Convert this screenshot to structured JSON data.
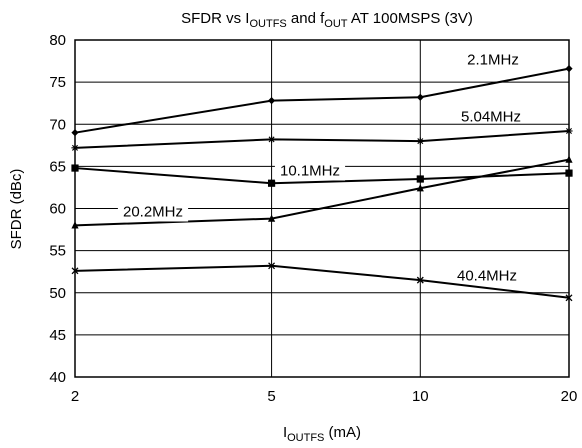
{
  "chart_data": {
    "type": "line",
    "title": {
      "prefix": "SFDR vs I",
      "sub1": "OUTFS",
      "middle": " and f",
      "sub2": "OUT",
      "suffix": " AT 100MSPS (3V)"
    },
    "xlabel": {
      "main": "I",
      "sub": "OUTFS",
      "unit": " (mA)"
    },
    "ylabel": "SFDR (dBc)",
    "x_scale": "log",
    "x_ticks": [
      2,
      5,
      10,
      20
    ],
    "x_tick_labels": [
      "2",
      "5",
      "10",
      "20"
    ],
    "ylim": [
      40,
      80
    ],
    "y_ticks": [
      40,
      45,
      50,
      55,
      60,
      65,
      70,
      75,
      80
    ],
    "y_tick_labels": [
      "40",
      "45",
      "50",
      "55",
      "60",
      "65",
      "70",
      "75",
      "80"
    ],
    "grid": true,
    "legend": "inline labels",
    "series": [
      {
        "name": "2.1MHz",
        "marker": "diamond",
        "x": [
          2,
          5,
          10,
          20
        ],
        "y": [
          69.0,
          72.8,
          73.2,
          76.6
        ]
      },
      {
        "name": "5.04MHz",
        "marker": "star",
        "x": [
          2,
          5,
          10,
          20
        ],
        "y": [
          67.2,
          68.2,
          68.0,
          69.2
        ]
      },
      {
        "name": "10.1MHz",
        "marker": "square",
        "x": [
          2,
          5,
          10,
          20
        ],
        "y": [
          64.8,
          63.0,
          63.5,
          64.2
        ]
      },
      {
        "name": "20.2MHz",
        "marker": "triangle",
        "x": [
          2,
          5,
          10,
          20
        ],
        "y": [
          58.0,
          58.8,
          62.4,
          65.8
        ]
      },
      {
        "name": "40.4MHz",
        "marker": "cross",
        "x": [
          2,
          5,
          10,
          20
        ],
        "y": [
          52.6,
          53.2,
          51.5,
          49.4
        ]
      }
    ]
  }
}
